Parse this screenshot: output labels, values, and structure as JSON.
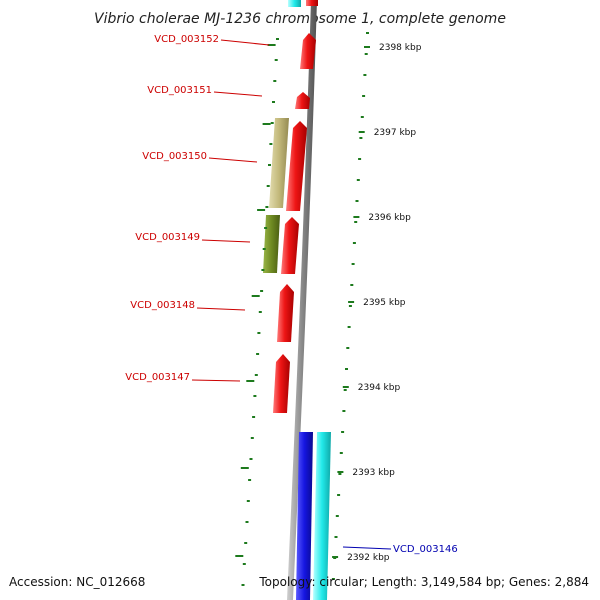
{
  "title": "Vibrio cholerae MJ-1236 chromosome 1, complete genome",
  "accession": "Accession: NC_012668",
  "topology": "Topology: circular; Length: 3,149,584 bp; Genes: 2,884",
  "colors": {
    "forward_gene": "#e41313",
    "reverse_gene": "#1a1ad8",
    "cyan_gene": "#16e6e6",
    "tan_gene": "#c2b87a",
    "olive_gene": "#6f8a22",
    "tick": "#1d7a1d",
    "backbone": "#8a8a8a",
    "label_red": "#cc0000",
    "label_blue": "#0000b0"
  },
  "kbp_ticks": [
    "2398 kbp",
    "2397 kbp",
    "2396 kbp",
    "2395 kbp",
    "2394 kbp",
    "2393 kbp",
    "2392 kbp"
  ],
  "gene_labels": [
    {
      "text": "VCD_003152",
      "strand": "forward"
    },
    {
      "text": "VCD_003151",
      "strand": "forward"
    },
    {
      "text": "VCD_003150",
      "strand": "forward"
    },
    {
      "text": "VCD_003149",
      "strand": "forward"
    },
    {
      "text": "VCD_003148",
      "strand": "forward"
    },
    {
      "text": "VCD_003147",
      "strand": "forward"
    },
    {
      "text": "VCD_003146",
      "strand": "reverse"
    }
  ]
}
